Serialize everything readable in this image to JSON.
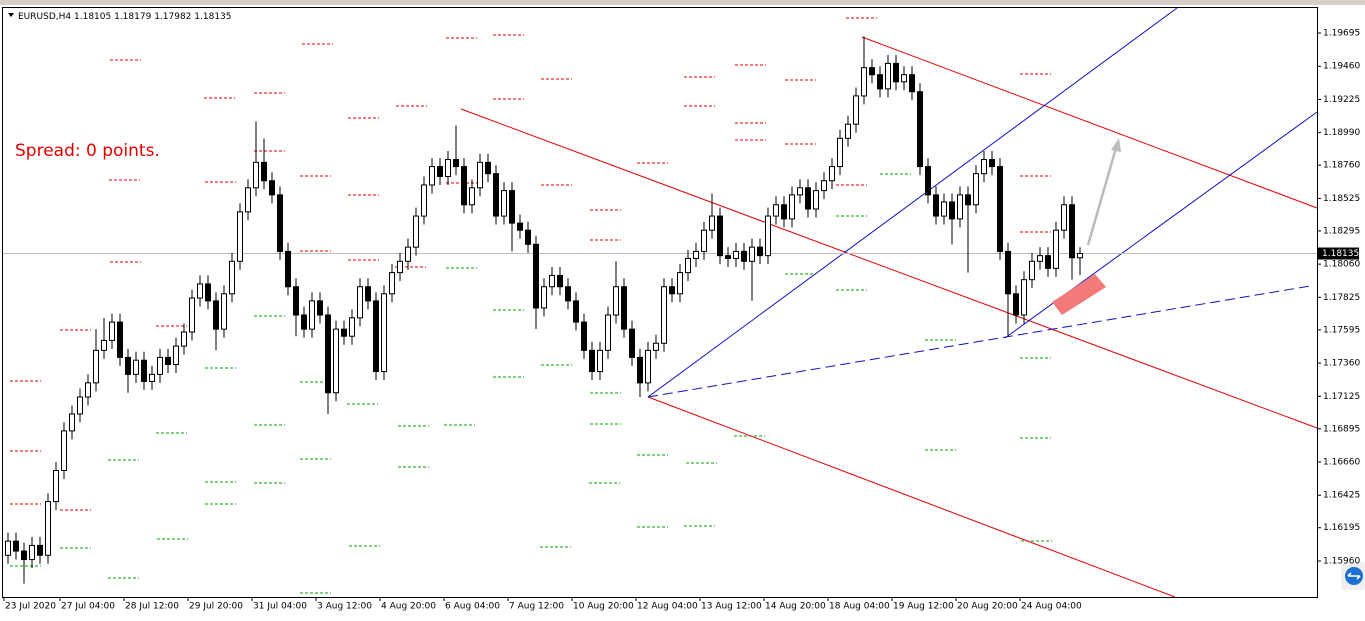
{
  "chart_data": {
    "type": "candlestick",
    "title": "EURUSD,H4",
    "annotation": "Spread: 0 points.",
    "ylim": [
      1.15705,
      1.19872
    ],
    "yticks": [
      1.19695,
      {
        "value": 1.1946,
        "label": "1.19460"
      },
      1.19225,
      {
        "value": 1.1899,
        "label": "1.18990"
      },
      {
        "value": 1.1876,
        "label": "1.18760"
      },
      1.18525,
      1.18295,
      {
        "value": 1.1806,
        "label": "1.18060"
      },
      1.17825,
      1.17595,
      {
        "value": 1.1736,
        "label": "1.17360"
      },
      1.17125,
      1.16895,
      {
        "value": 1.1666,
        "label": "1.16660"
      },
      1.16425,
      1.16195,
      {
        "value": 1.1596,
        "label": "1.15960"
      }
    ],
    "categories": [
      "23 Jul 2020",
      null,
      null,
      null,
      null,
      null,
      null,
      "27 Jul 04:00",
      null,
      null,
      null,
      null,
      null,
      null,
      null,
      "28 Jul 12:00",
      null,
      null,
      null,
      null,
      null,
      null,
      null,
      "29 Jul 20:00",
      null,
      null,
      null,
      null,
      null,
      null,
      null,
      "31 Jul 04:00",
      null,
      null,
      null,
      null,
      null,
      null,
      null,
      "3 Aug 12:00",
      null,
      null,
      null,
      null,
      null,
      null,
      null,
      "4 Aug 20:00",
      null,
      null,
      null,
      null,
      null,
      null,
      null,
      "6 Aug 04:00",
      null,
      null,
      null,
      null,
      null,
      null,
      null,
      "7 Aug 12:00",
      null,
      null,
      null,
      null,
      null,
      null,
      null,
      "10 Aug 20:00",
      null,
      null,
      null,
      null,
      null,
      null,
      null,
      "12 Aug 04:00",
      null,
      null,
      null,
      null,
      null,
      null,
      null,
      "13 Aug 12:00",
      null,
      null,
      null,
      null,
      null,
      null,
      null,
      "14 Aug 20:00",
      null,
      null,
      null,
      null,
      null,
      null,
      null,
      "18 Aug 04:00",
      null,
      null,
      null,
      null,
      null,
      null,
      null,
      "19 Aug 12:00",
      null,
      null,
      null,
      null,
      null,
      null,
      null,
      "20 Aug 20:00",
      null,
      null,
      null,
      null,
      null,
      null,
      null,
      "24 Aug 04:00",
      null,
      null,
      null,
      null,
      null,
      null,
      null
    ],
    "open": [
      1.16,
      1.161,
      1.1603,
      1.1597,
      1.1607,
      1.16,
      1.1638,
      1.166,
      1.1688,
      1.17,
      1.1712,
      1.1722,
      1.1745,
      1.1752,
      1.1765,
      1.174,
      1.1728,
      1.1738,
      1.1723,
      1.1728,
      1.174,
      1.1735,
      1.1748,
      1.1758,
      1.1782,
      1.1792,
      1.178,
      1.176,
      1.1785,
      1.1808,
      1.1843,
      1.186,
      1.1878,
      1.1865,
      1.1855,
      1.1815,
      1.179,
      1.177,
      1.176,
      1.178,
      1.177,
      1.1715,
      1.176,
      1.1755,
      1.1768,
      1.179,
      1.178,
      1.173,
      1.1785,
      1.18,
      1.1808,
      1.1818,
      1.184,
      1.1862,
      1.1875,
      1.1868,
      1.188,
      1.1875,
      1.1848,
      1.186,
      1.1878,
      1.187,
      1.184,
      1.1858,
      1.1835,
      1.183,
      1.182,
      1.1775,
      1.179,
      1.1798,
      1.179,
      1.178,
      1.1765,
      1.1745,
      1.173,
      1.1745,
      1.177,
      1.179,
      1.176,
      1.174,
      1.1722,
      1.1745,
      1.175,
      1.179,
      1.1785,
      1.18,
      1.181,
      1.1815,
      1.183,
      1.184,
      1.1812,
      1.181,
      1.1815,
      1.1808,
      1.1818,
      1.1812,
      1.184,
      1.1848,
      1.1838,
      1.1855,
      1.186,
      1.1845,
      1.1858,
      1.1865,
      1.1875,
      1.1895,
      1.1905,
      1.1925,
      1.1945,
      1.194,
      1.193,
      1.1948,
      1.1935,
      1.194,
      1.1928,
      1.1875,
      1.1855,
      1.184,
      1.185,
      1.1838,
      1.1855,
      1.1848,
      1.187,
      1.188,
      1.1875,
      1.1815,
      1.1785,
      1.177,
      1.1795,
      1.1808,
      1.1812,
      1.1803,
      1.183,
      1.1848,
      1.18105
    ],
    "high": [
      1.1616,
      1.1616,
      1.1609,
      1.1613,
      1.1613,
      1.1644,
      1.1666,
      1.1694,
      1.1706,
      1.1718,
      1.1728,
      1.176,
      1.1768,
      1.1771,
      1.1771,
      1.1746,
      1.1744,
      1.1744,
      1.1734,
      1.1746,
      1.1746,
      1.1754,
      1.1764,
      1.1788,
      1.1798,
      1.1798,
      1.1786,
      1.1791,
      1.1814,
      1.1849,
      1.1866,
      1.1907,
      1.1895,
      1.1871,
      1.1861,
      1.1821,
      1.1796,
      1.1776,
      1.1786,
      1.1786,
      1.1776,
      1.1766,
      1.1766,
      1.1774,
      1.1796,
      1.1796,
      1.1786,
      1.1791,
      1.1806,
      1.1814,
      1.1824,
      1.1846,
      1.1868,
      1.1881,
      1.1881,
      1.1886,
      1.1904,
      1.1881,
      1.1866,
      1.1884,
      1.1884,
      1.1876,
      1.1864,
      1.1864,
      1.1841,
      1.1836,
      1.1826,
      1.1796,
      1.1804,
      1.1804,
      1.1796,
      1.1786,
      1.1771,
      1.1751,
      1.1751,
      1.1776,
      1.1808,
      1.1796,
      1.1766,
      1.1746,
      1.1751,
      1.1756,
      1.1796,
      1.1796,
      1.1806,
      1.1816,
      1.1821,
      1.1836,
      1.1856,
      1.1846,
      1.1818,
      1.1821,
      1.1821,
      1.1824,
      1.1824,
      1.1846,
      1.1854,
      1.1854,
      1.1861,
      1.1866,
      1.1866,
      1.1864,
      1.1871,
      1.1881,
      1.1901,
      1.1911,
      1.1931,
      1.1967,
      1.1951,
      1.1946,
      1.1954,
      1.1954,
      1.1946,
      1.1946,
      1.1934,
      1.1881,
      1.1861,
      1.1856,
      1.1856,
      1.1861,
      1.1861,
      1.1876,
      1.1886,
      1.1886,
      1.1881,
      1.1821,
      1.1791,
      1.1801,
      1.1814,
      1.1818,
      1.1818,
      1.1836,
      1.1854,
      1.1854,
      1.18179
    ],
    "low": [
      1.1594,
      1.1597,
      1.158,
      1.1591,
      1.1594,
      1.1594,
      1.1632,
      1.1654,
      1.1682,
      1.1694,
      1.1706,
      1.1716,
      1.1739,
      1.1746,
      1.1734,
      1.1715,
      1.1722,
      1.1717,
      1.1717,
      1.1722,
      1.1729,
      1.1729,
      1.1742,
      1.1752,
      1.1776,
      1.1774,
      1.1745,
      1.1754,
      1.1779,
      1.1802,
      1.1837,
      1.1854,
      1.1859,
      1.1849,
      1.1809,
      1.1784,
      1.1755,
      1.1754,
      1.1754,
      1.1764,
      1.17,
      1.1709,
      1.1749,
      1.1749,
      1.1762,
      1.1774,
      1.1724,
      1.1724,
      1.1779,
      1.1794,
      1.1802,
      1.1812,
      1.1834,
      1.1856,
      1.1862,
      1.1862,
      1.1869,
      1.1842,
      1.1842,
      1.1854,
      1.1864,
      1.1834,
      1.1834,
      1.1815,
      1.1824,
      1.1814,
      1.176,
      1.1769,
      1.1784,
      1.1784,
      1.1774,
      1.1759,
      1.1739,
      1.1724,
      1.1724,
      1.1739,
      1.1764,
      1.1754,
      1.1734,
      1.1712,
      1.1716,
      1.1739,
      1.1744,
      1.1779,
      1.1779,
      1.1794,
      1.1804,
      1.1809,
      1.1824,
      1.1806,
      1.1804,
      1.1804,
      1.1802,
      1.178,
      1.1806,
      1.1806,
      1.1834,
      1.1832,
      1.1832,
      1.1849,
      1.1839,
      1.1839,
      1.1852,
      1.1859,
      1.1869,
      1.1889,
      1.1899,
      1.1919,
      1.1934,
      1.1924,
      1.1924,
      1.1929,
      1.1929,
      1.1922,
      1.1869,
      1.1849,
      1.1834,
      1.1834,
      1.182,
      1.1832,
      1.18,
      1.1842,
      1.1864,
      1.1869,
      1.1809,
      1.1755,
      1.1764,
      1.1764,
      1.1789,
      1.1802,
      1.1797,
      1.1797,
      1.1824,
      1.1795,
      1.17982
    ],
    "close": [
      1.161,
      1.1603,
      1.1597,
      1.1607,
      1.16,
      1.1638,
      1.166,
      1.1688,
      1.17,
      1.1712,
      1.1722,
      1.1745,
      1.1752,
      1.1765,
      1.174,
      1.1728,
      1.1738,
      1.1723,
      1.1728,
      1.174,
      1.1735,
      1.1748,
      1.1758,
      1.1782,
      1.1792,
      1.178,
      1.176,
      1.1785,
      1.1808,
      1.1843,
      1.186,
      1.1878,
      1.1865,
      1.1855,
      1.1815,
      1.179,
      1.177,
      1.176,
      1.178,
      1.177,
      1.1715,
      1.176,
      1.1755,
      1.1768,
      1.179,
      1.178,
      1.173,
      1.1785,
      1.18,
      1.1808,
      1.1818,
      1.184,
      1.1862,
      1.1875,
      1.1868,
      1.188,
      1.1875,
      1.1848,
      1.186,
      1.1878,
      1.187,
      1.184,
      1.1858,
      1.1835,
      1.183,
      1.182,
      1.1775,
      1.179,
      1.1798,
      1.179,
      1.178,
      1.1765,
      1.1745,
      1.173,
      1.1745,
      1.177,
      1.179,
      1.176,
      1.174,
      1.1722,
      1.1745,
      1.175,
      1.179,
      1.1785,
      1.18,
      1.181,
      1.1815,
      1.183,
      1.184,
      1.1812,
      1.181,
      1.1815,
      1.1808,
      1.1818,
      1.1812,
      1.184,
      1.1848,
      1.1838,
      1.1855,
      1.186,
      1.1845,
      1.1858,
      1.1865,
      1.1875,
      1.1895,
      1.1905,
      1.1925,
      1.1945,
      1.194,
      1.193,
      1.1948,
      1.1935,
      1.194,
      1.1928,
      1.1875,
      1.1855,
      1.184,
      1.185,
      1.1838,
      1.1855,
      1.1848,
      1.187,
      1.188,
      1.1875,
      1.1815,
      1.1785,
      1.177,
      1.1795,
      1.1808,
      1.1812,
      1.1803,
      1.183,
      1.1848,
      1.18105,
      1.18135
    ],
    "bull_color": "#ffffff",
    "bear_color": "#000000",
    "grid": false
  }
}
